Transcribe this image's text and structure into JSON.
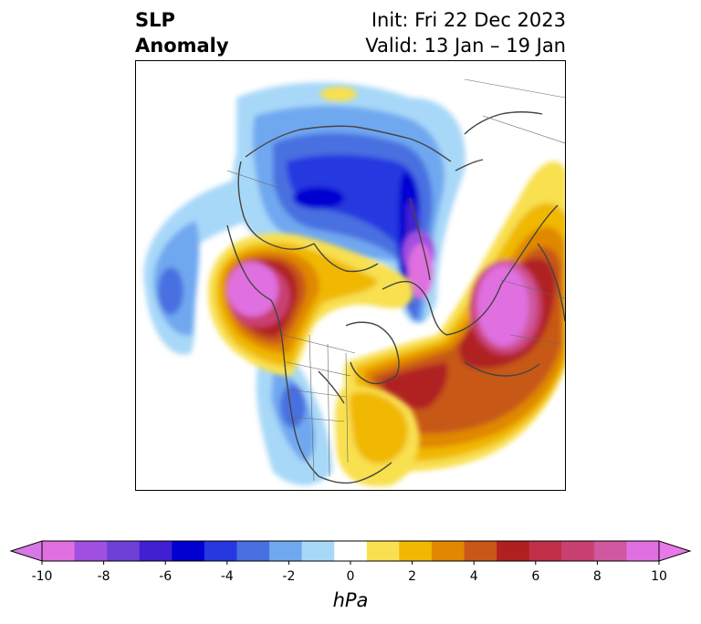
{
  "title": {
    "line1": "SLP",
    "line2": "Anomaly",
    "init": "Init: Fri 22 Dec 2023",
    "valid": "Valid: 13 Jan – 19 Jan"
  },
  "colorbar": {
    "unit": "hPa",
    "ticks": [
      "-10",
      "-8",
      "-6",
      "-4",
      "-2",
      "0",
      "2",
      "4",
      "6",
      "8",
      "10"
    ],
    "colors": [
      "#e070e0",
      "#a050e0",
      "#6e40d8",
      "#4020d0",
      "#0000d0",
      "#2838e0",
      "#4870e0",
      "#70a8f0",
      "#a8d8f8",
      "#ffffff",
      "#f8e050",
      "#f0b800",
      "#e08800",
      "#c85818",
      "#b02020",
      "#c03048",
      "#c84070",
      "#d058a0",
      "#e070e0"
    ],
    "under_color": "#d878e8",
    "over_color": "#e878e8"
  },
  "palette": {
    "land_outline": "#444444",
    "frame": "#000000"
  }
}
